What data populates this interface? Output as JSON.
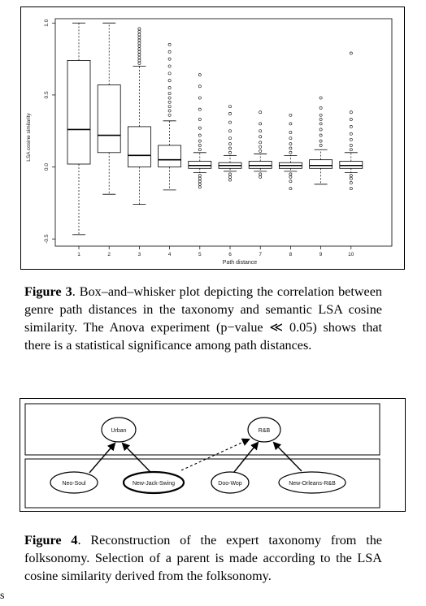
{
  "figure3": {
    "caption_label": "Figure 3",
    "caption_text": ". Box–and–whisker plot depicting the correlation between genre path distances in the taxonomy and semantic LSA cosine similarity. The Anova experiment (p−value ≪ 0.05) shows that there is a statistical significance among path distances."
  },
  "chart_data": {
    "type": "box",
    "xlabel": "Path distance",
    "ylabel": "LSA cosine similarity",
    "ylim": [
      -0.55,
      1.03
    ],
    "yticks": [
      "-0.5",
      "0.0",
      "0.5",
      "1.0"
    ],
    "grid": false,
    "categories": [
      "1",
      "2",
      "3",
      "4",
      "5",
      "6",
      "7",
      "8",
      "9",
      "10"
    ],
    "boxes": [
      {
        "min": -0.47,
        "q1": 0.02,
        "median": 0.26,
        "q3": 0.74,
        "max": 1.0,
        "outliers": []
      },
      {
        "min": -0.19,
        "q1": 0.1,
        "median": 0.22,
        "q3": 0.57,
        "max": 1.0,
        "outliers": []
      },
      {
        "min": -0.26,
        "q1": 0.0,
        "median": 0.08,
        "q3": 0.28,
        "max": 0.7,
        "outliers": [
          0.72,
          0.74,
          0.76,
          0.78,
          0.8,
          0.82,
          0.84,
          0.86,
          0.88,
          0.9,
          0.92,
          0.94,
          0.96
        ]
      },
      {
        "min": -0.16,
        "q1": 0.0,
        "median": 0.05,
        "q3": 0.15,
        "max": 0.32,
        "outliers": [
          0.36,
          0.39,
          0.42,
          0.45,
          0.48,
          0.51,
          0.55,
          0.6,
          0.65,
          0.7,
          0.75,
          0.8,
          0.85
        ]
      },
      {
        "min": -0.04,
        "q1": -0.01,
        "median": 0.01,
        "q3": 0.04,
        "max": 0.1,
        "outliers": [
          0.12,
          0.15,
          0.18,
          0.22,
          0.27,
          0.33,
          0.4,
          0.48,
          0.56,
          0.64,
          -0.06,
          -0.08,
          -0.1,
          -0.12,
          -0.14
        ]
      },
      {
        "min": -0.03,
        "q1": -0.01,
        "median": 0.01,
        "q3": 0.03,
        "max": 0.08,
        "outliers": [
          0.1,
          0.13,
          0.16,
          0.2,
          0.25,
          0.31,
          0.37,
          0.42,
          -0.05,
          -0.07,
          -0.09
        ]
      },
      {
        "min": -0.03,
        "q1": -0.01,
        "median": 0.01,
        "q3": 0.04,
        "max": 0.09,
        "outliers": [
          0.11,
          0.14,
          0.17,
          0.21,
          0.25,
          0.3,
          0.38,
          -0.05,
          -0.07
        ]
      },
      {
        "min": -0.03,
        "q1": -0.01,
        "median": 0.01,
        "q3": 0.03,
        "max": 0.08,
        "outliers": [
          0.1,
          0.13,
          0.16,
          0.2,
          0.24,
          0.3,
          0.36,
          -0.05,
          -0.07,
          -0.1,
          -0.15
        ]
      },
      {
        "min": -0.12,
        "q1": -0.01,
        "median": 0.01,
        "q3": 0.05,
        "max": 0.12,
        "outliers": [
          0.15,
          0.18,
          0.22,
          0.26,
          0.3,
          0.33,
          0.36,
          0.41,
          0.48
        ]
      },
      {
        "min": -0.04,
        "q1": -0.01,
        "median": 0.01,
        "q3": 0.04,
        "max": 0.1,
        "outliers": [
          0.12,
          0.15,
          0.19,
          0.23,
          0.28,
          0.33,
          0.38,
          0.79,
          -0.06,
          -0.08,
          -0.11,
          -0.15
        ]
      }
    ]
  },
  "figure4": {
    "caption_label": "Figure 4",
    "caption_text": ". Reconstruction of the expert taxonomy from the folksonomy. Selection of a parent is made according to the LSA cosine similarity derived from the folksonomy.",
    "nodes": {
      "urban": "Urban",
      "rnb": "R&B",
      "neo_soul": "Neo-Soul",
      "new_jack_swing": "New-Jack-Swing",
      "doo_wop": "Doo-Wop",
      "new_orleans_rnb": "New-Orleans-R&B"
    }
  },
  "page_mark": "s"
}
